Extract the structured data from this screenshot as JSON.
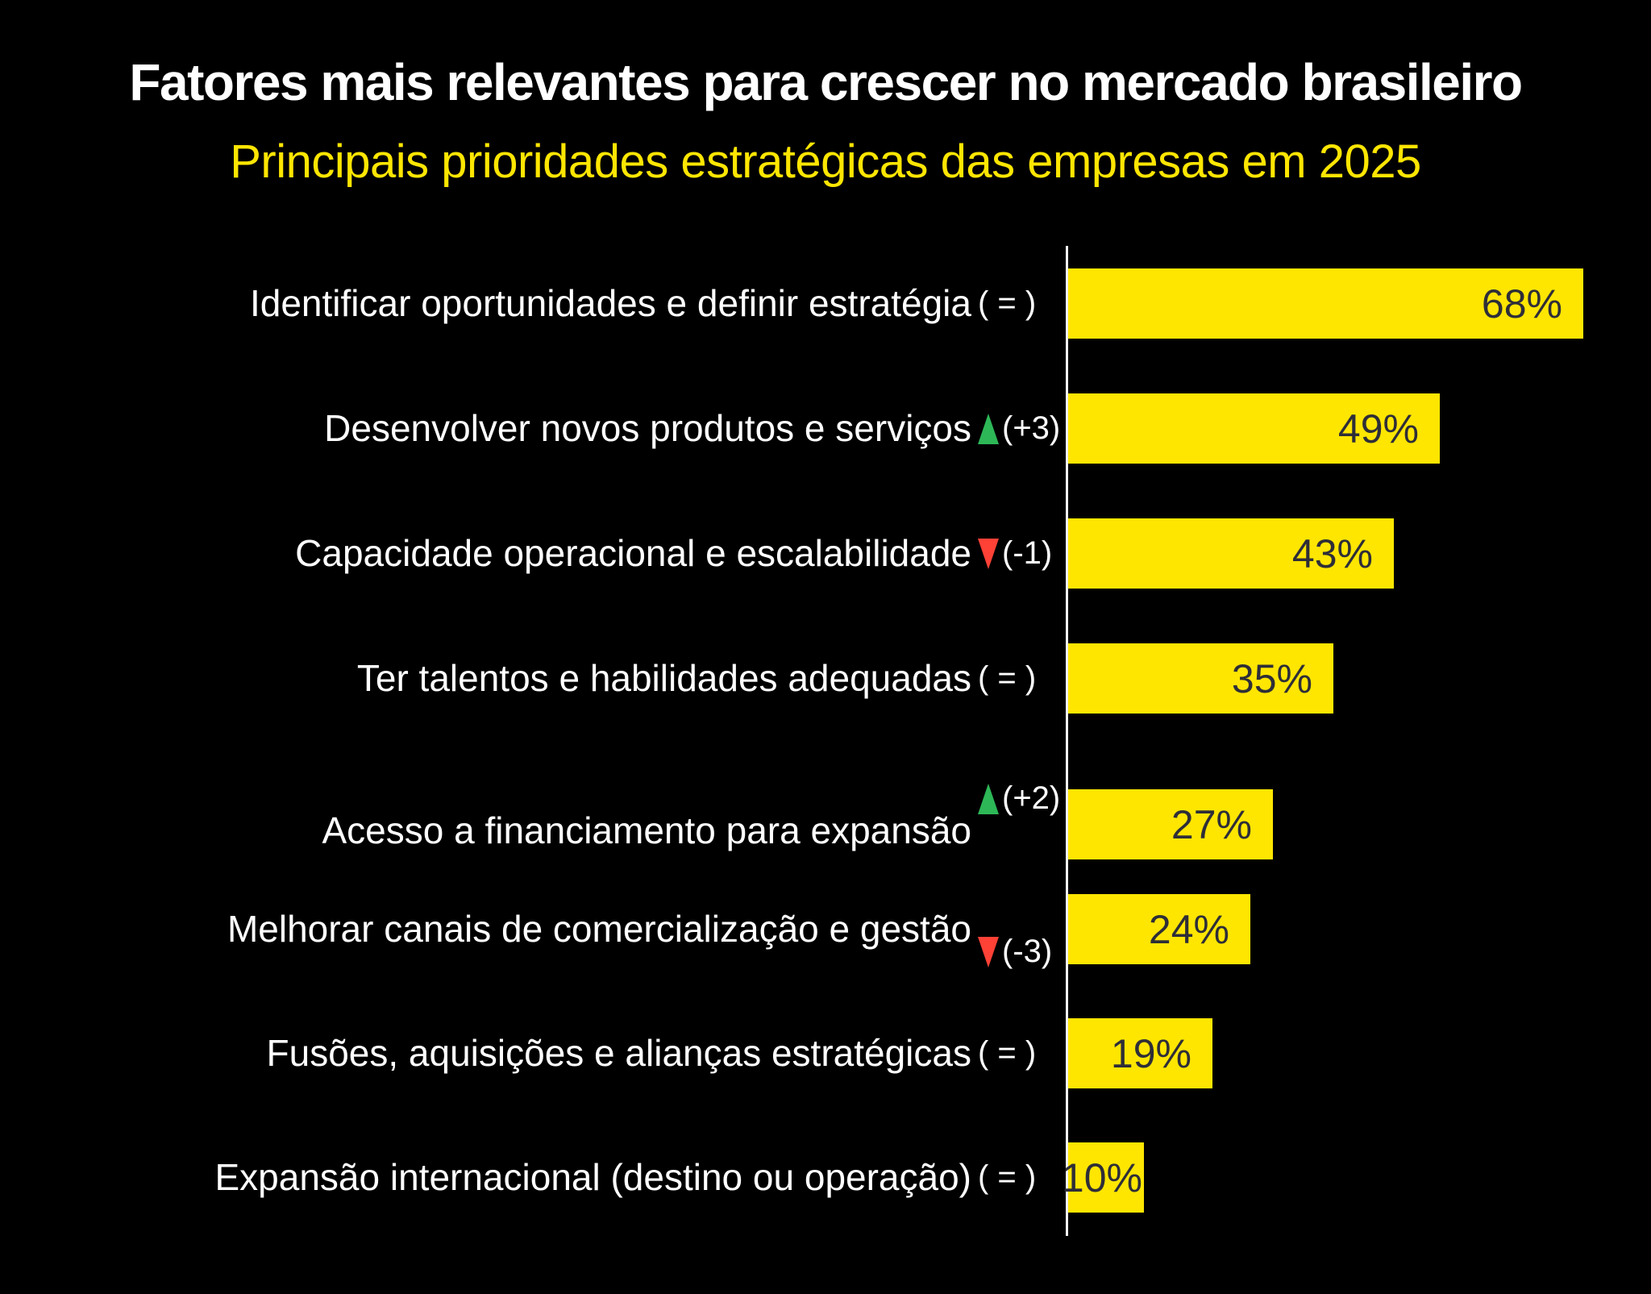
{
  "title": "Fatores mais relevantes para crescer no mercado brasileiro",
  "subtitle": "Principais prioridades estratégicas das empresas em 2025",
  "colors": {
    "background": "#000000",
    "title": "#FFFFFF",
    "subtitle": "#FFE600",
    "bar": "#FFE600",
    "bar_text": "#2E2E38",
    "label": "#FFFFFF",
    "indicator": "#FFFFFF",
    "axis": "#F2F2F2",
    "up": "#2DB757",
    "down": "#FF4136"
  },
  "icons": {
    "up_triangle": "triangle-up",
    "down_triangle": "triangle-down"
  },
  "chart_data": {
    "type": "bar",
    "orientation": "horizontal",
    "title": "Fatores mais relevantes para crescer no mercado brasileiro",
    "subtitle": "Principais prioridades estratégicas das empresas em 2025",
    "categories": [
      "Identificar oportunidades e definir estratégia",
      "Desenvolver novos produtos e serviços",
      "Capacidade operacional e escalabilidade",
      "Ter talentos e habilidades adequadas",
      "Acesso a financiamento para expansão",
      "Melhorar canais de comercialização e gestão",
      "Fusões, aquisições e alianças estratégicas",
      "Expansão internacional (destino ou operação)"
    ],
    "values": [
      68,
      49,
      43,
      35,
      27,
      24,
      19,
      10
    ],
    "value_labels": [
      "68%",
      "49%",
      "43%",
      "35%",
      "27%",
      "24%",
      "19%",
      "10%"
    ],
    "changes": [
      {
        "direction": "same",
        "label": "( = )"
      },
      {
        "direction": "up",
        "label": "(+3)"
      },
      {
        "direction": "down",
        "label": "(-1)"
      },
      {
        "direction": "same",
        "label": "( = )"
      },
      {
        "direction": "up",
        "label": "(+2)"
      },
      {
        "direction": "down",
        "label": "(-3)"
      },
      {
        "direction": "same",
        "label": "( = )"
      },
      {
        "direction": "same",
        "label": "( = )"
      }
    ],
    "xlim": [
      0,
      68
    ],
    "grid": false,
    "legend": false
  }
}
